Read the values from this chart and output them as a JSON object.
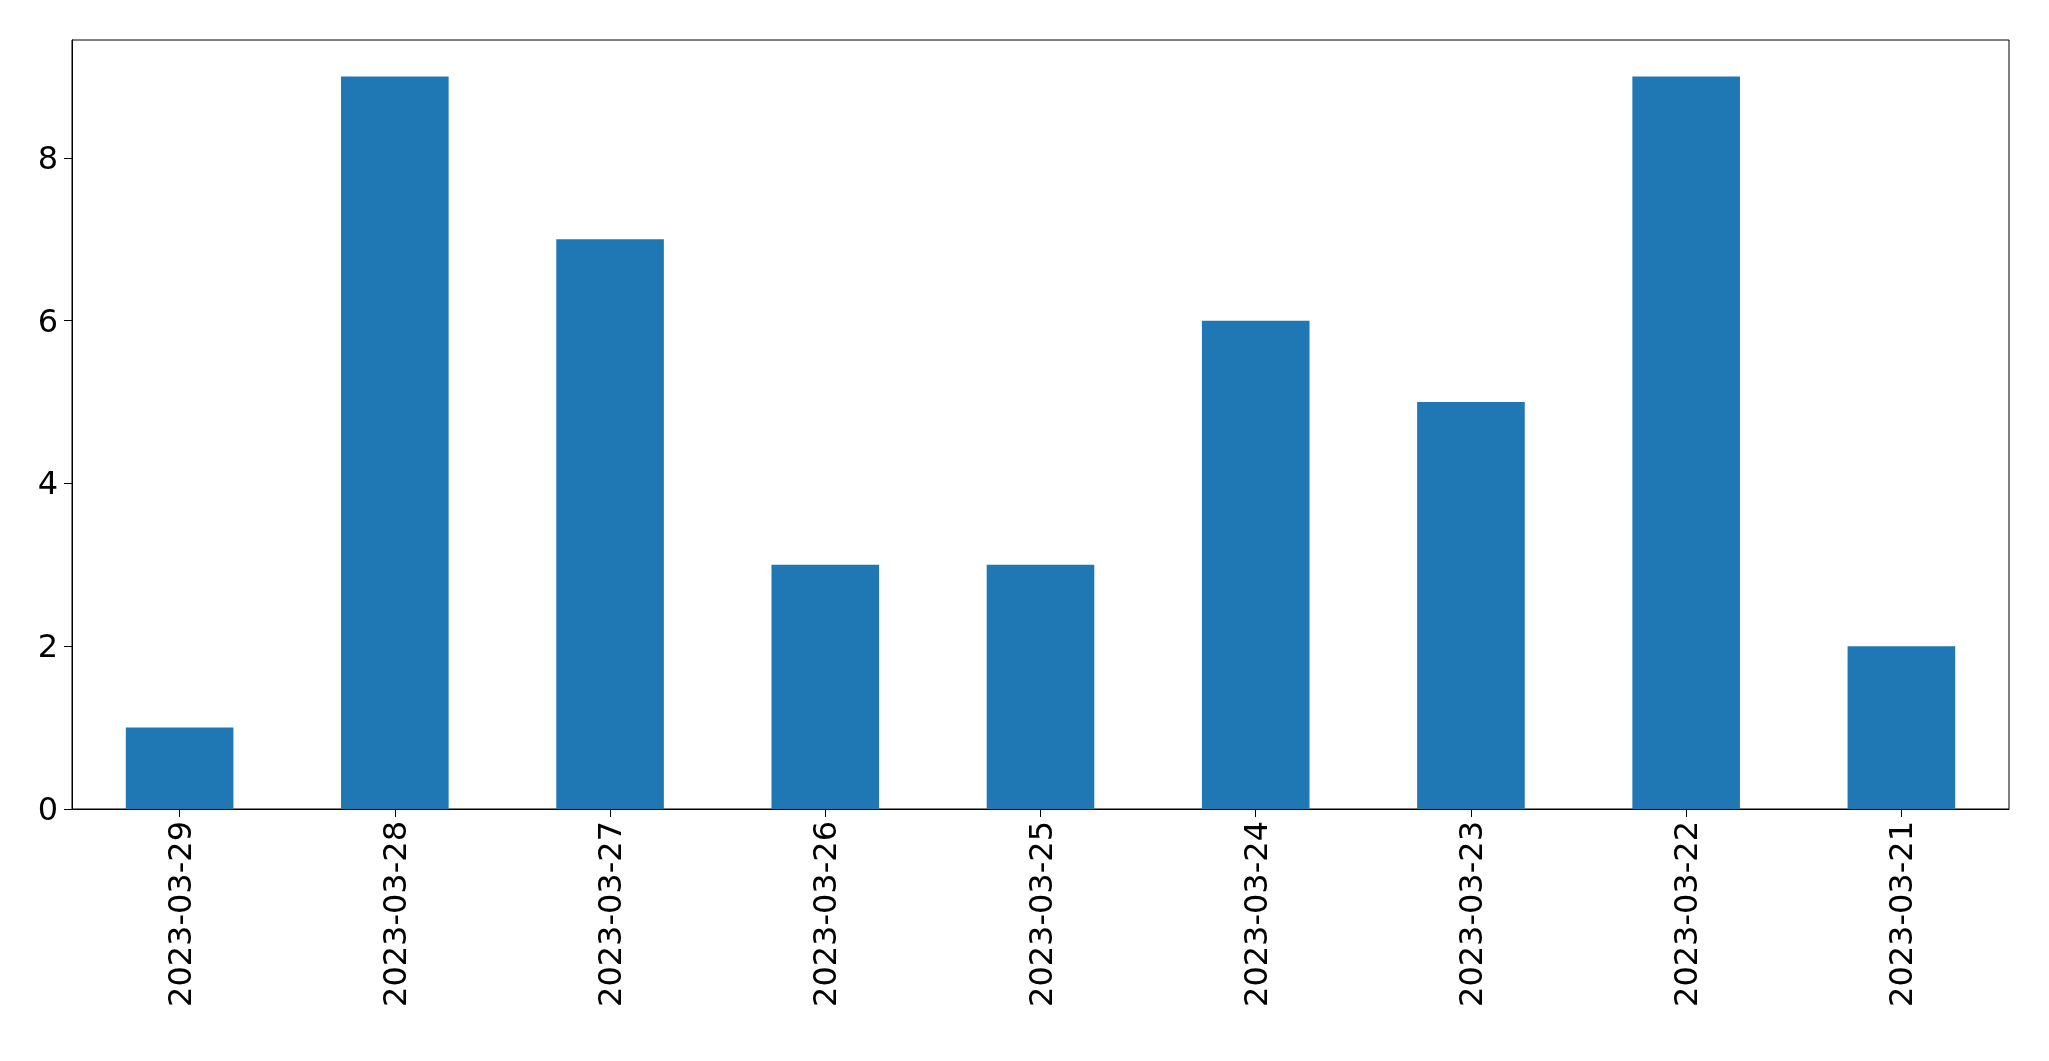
{
  "chart_data": {
    "type": "bar",
    "categories": [
      "2023-03-29",
      "2023-03-28",
      "2023-03-27",
      "2023-03-26",
      "2023-03-25",
      "2023-03-24",
      "2023-03-23",
      "2023-03-22",
      "2023-03-21"
    ],
    "values": [
      1,
      9,
      7,
      3,
      3,
      6,
      5,
      9,
      2
    ],
    "color": "#1f77b4",
    "ylim": [
      0,
      9.45
    ],
    "yticks": [
      0,
      2,
      4,
      6,
      8
    ],
    "grid": false
  }
}
